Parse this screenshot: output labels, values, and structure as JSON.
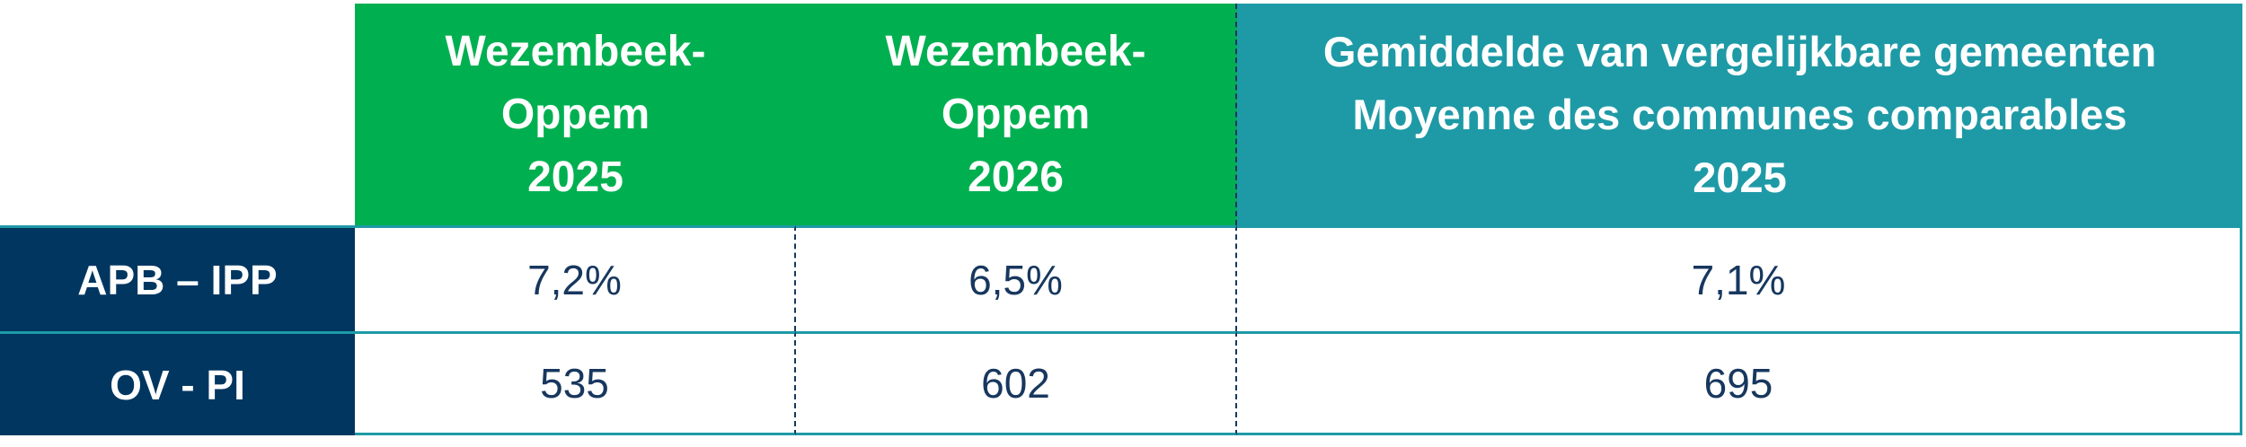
{
  "table": {
    "header": [
      [
        "Wezembeek-",
        "Oppem",
        "2025"
      ],
      [
        "Wezembeek-",
        "Oppem",
        "2026"
      ],
      [
        "Gemiddelde van vergelijkbare gemeenten",
        "Moyenne des communes comparables",
        "2025"
      ]
    ],
    "rows": [
      [
        "APB – IPP",
        "7,2%",
        "6,5%",
        "7,1%"
      ],
      [
        "OV - PI",
        "535",
        "602",
        "695"
      ]
    ]
  }
}
